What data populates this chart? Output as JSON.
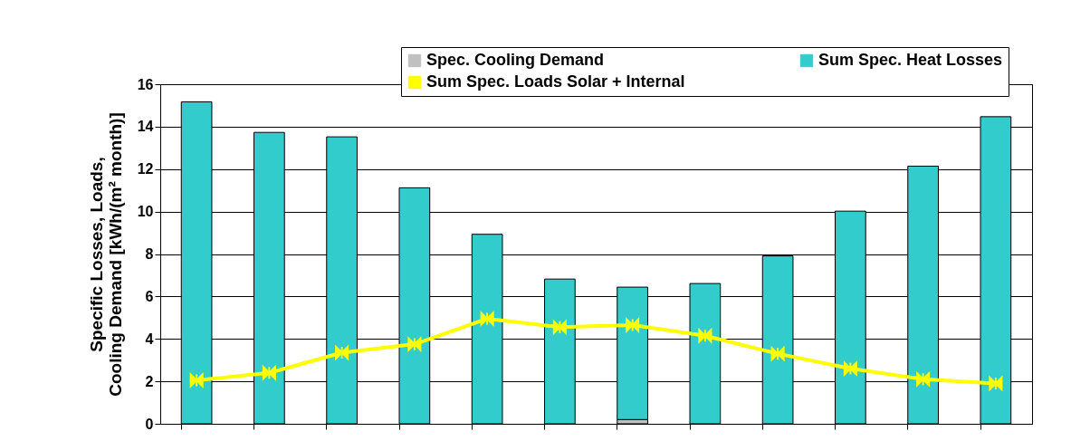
{
  "chart_data": {
    "type": "bar",
    "stacked": true,
    "ylabel": "Specific Losses, Loads,\nCooling Demand [kWh/(m² month)]",
    "categories": [
      null,
      null,
      null,
      null,
      null,
      null,
      null,
      null,
      null,
      null,
      null,
      null
    ],
    "series": [
      {
        "name": "Spec. Cooling Demand",
        "color": "#c0c0c0",
        "values": [
          null,
          null,
          null,
          null,
          null,
          null,
          0.2,
          null,
          null,
          null,
          null,
          null
        ]
      },
      {
        "name": "Sum Spec. Heat Losses",
        "color": "#33cccc",
        "values": [
          15.17,
          13.73,
          13.52,
          11.12,
          8.93,
          6.82,
          6.24,
          6.61,
          7.91,
          10.02,
          12.14,
          14.47
        ]
      },
      {
        "name": "Sum Spec. Loads Solar + Internal",
        "type": "line",
        "color": "#ffff00",
        "marker": "cross",
        "values": [
          2.05,
          2.4,
          3.35,
          3.75,
          4.95,
          4.55,
          4.65,
          4.15,
          3.3,
          2.6,
          2.1,
          1.9
        ]
      }
    ],
    "ylim": [
      0,
      16
    ],
    "yticks": [
      0,
      2,
      4,
      6,
      8,
      10,
      12,
      14,
      16
    ],
    "grid": "y",
    "legend": "top right",
    "tick_labels": "y"
  }
}
